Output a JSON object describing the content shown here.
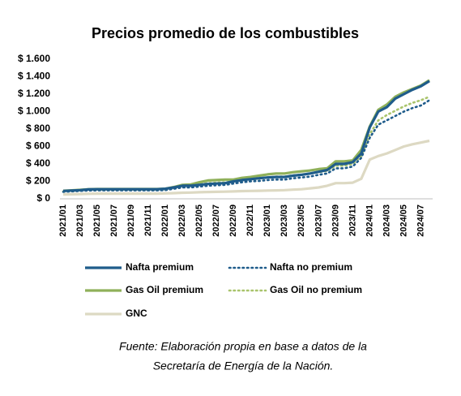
{
  "chart_data": {
    "type": "line",
    "title": "Precios promedio de los combustibles",
    "categories": [
      "2021/01",
      null,
      "2021/03",
      null,
      "2021/05",
      null,
      "2021/07",
      null,
      "2021/09",
      null,
      "2021/11",
      null,
      "2022/01",
      null,
      "2022/03",
      null,
      "2022/05",
      null,
      "2022/07",
      null,
      "2022/09",
      null,
      "2022/11",
      null,
      "2023/01",
      null,
      "2023/03",
      null,
      "2023/05",
      null,
      "2023/07",
      null,
      "2023/09",
      null,
      "2023/11",
      null,
      "2024/01",
      null,
      "2024/03",
      null,
      "2024/05",
      null,
      "2024/07",
      null
    ],
    "series": [
      {
        "name": "Nafta premium",
        "color": "#1f5c8b",
        "style": "solid",
        "values": [
          90,
          95,
          100,
          108,
          110,
          110,
          110,
          110,
          110,
          110,
          110,
          110,
          115,
          130,
          150,
          150,
          160,
          170,
          175,
          180,
          200,
          215,
          225,
          235,
          245,
          250,
          250,
          265,
          275,
          290,
          310,
          330,
          400,
          400,
          420,
          520,
          820,
          1000,
          1050,
          1150,
          1200,
          1250,
          1290,
          1350
        ]
      },
      {
        "name": "Nafta no premium",
        "color": "#1f5c8b",
        "style": "dotted",
        "values": [
          80,
          85,
          90,
          95,
          97,
          97,
          97,
          97,
          97,
          97,
          97,
          97,
          100,
          115,
          130,
          130,
          140,
          150,
          155,
          160,
          175,
          190,
          200,
          205,
          215,
          220,
          220,
          235,
          245,
          255,
          275,
          290,
          350,
          350,
          370,
          470,
          700,
          850,
          900,
          950,
          1000,
          1040,
          1070,
          1130
        ]
      },
      {
        "name": "Gas Oil premium",
        "color": "#8fb05a",
        "style": "solid",
        "values": [
          92,
          97,
          102,
          110,
          112,
          112,
          112,
          112,
          112,
          112,
          112,
          112,
          115,
          135,
          160,
          165,
          190,
          210,
          215,
          220,
          220,
          240,
          250,
          265,
          280,
          290,
          290,
          305,
          315,
          325,
          340,
          350,
          430,
          430,
          440,
          560,
          830,
          1020,
          1080,
          1170,
          1220,
          1260,
          1300,
          1360
        ]
      },
      {
        "name": "Gas Oil no premium",
        "color": "#a9c46c",
        "style": "dotted",
        "values": [
          85,
          90,
          95,
          100,
          100,
          100,
          100,
          100,
          100,
          100,
          100,
          100,
          105,
          120,
          140,
          145,
          165,
          180,
          185,
          190,
          195,
          210,
          220,
          230,
          245,
          255,
          255,
          270,
          280,
          290,
          305,
          320,
          380,
          380,
          400,
          490,
          740,
          900,
          960,
          1010,
          1060,
          1100,
          1130,
          1170
        ]
      },
      {
        "name": "GNC",
        "color": "#ddd9c3",
        "style": "solid",
        "values": [
          50,
          52,
          55,
          58,
          60,
          60,
          60,
          60,
          60,
          60,
          60,
          60,
          62,
          65,
          70,
          72,
          75,
          78,
          80,
          82,
          85,
          88,
          90,
          92,
          95,
          97,
          100,
          105,
          110,
          120,
          130,
          150,
          180,
          180,
          185,
          230,
          450,
          490,
          520,
          560,
          600,
          625,
          645,
          665
        ]
      }
    ],
    "ylim": [
      0,
      1600
    ],
    "yticks": [
      {
        "value": 0,
        "label": "$ 0"
      },
      {
        "value": 200,
        "label": "$ 200"
      },
      {
        "value": 400,
        "label": "$ 400"
      },
      {
        "value": 600,
        "label": "$ 600"
      },
      {
        "value": 800,
        "label": "$ 800"
      },
      {
        "value": 1000,
        "label": "$ 1.000"
      },
      {
        "value": 1200,
        "label": "$ 1.200"
      },
      {
        "value": 1400,
        "label": "$ 1.400"
      },
      {
        "value": 1600,
        "label": "$ 1.600"
      }
    ],
    "grid": false,
    "legend": "bottom",
    "source": [
      "Fuente: Elaboración propia en base a datos de la",
      "Secretaría de Energía de la Nación."
    ]
  }
}
